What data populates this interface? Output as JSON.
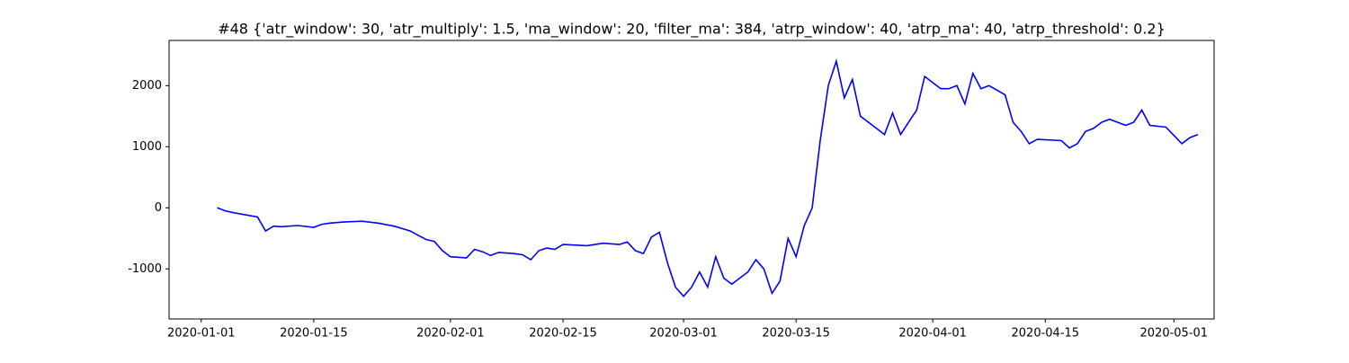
{
  "chart_data": {
    "type": "line",
    "title": "#48 {'atr_window': 30, 'atr_multiply': 1.5, 'ma_window': 20, 'filter_ma': 384, 'atrp_window': 40, 'atrp_ma': 40, 'atrp_threshold': 0.2}",
    "x": [
      "2020-01-03",
      "2020-01-04",
      "2020-01-05",
      "2020-01-08",
      "2020-01-09",
      "2020-01-10",
      "2020-01-11",
      "2020-01-13",
      "2020-01-15",
      "2020-01-16",
      "2020-01-17",
      "2020-01-19",
      "2020-01-21",
      "2020-01-23",
      "2020-01-25",
      "2020-01-27",
      "2020-01-28",
      "2020-01-29",
      "2020-01-30",
      "2020-01-31",
      "2020-02-01",
      "2020-02-03",
      "2020-02-04",
      "2020-02-05",
      "2020-02-06",
      "2020-02-07",
      "2020-02-09",
      "2020-02-10",
      "2020-02-11",
      "2020-02-12",
      "2020-02-13",
      "2020-02-14",
      "2020-02-15",
      "2020-02-18",
      "2020-02-20",
      "2020-02-22",
      "2020-02-23",
      "2020-02-24",
      "2020-02-25",
      "2020-02-26",
      "2020-02-27",
      "2020-02-28",
      "2020-02-29",
      "2020-03-01",
      "2020-03-02",
      "2020-03-03",
      "2020-03-04",
      "2020-03-05",
      "2020-03-06",
      "2020-03-07",
      "2020-03-09",
      "2020-03-10",
      "2020-03-11",
      "2020-03-12",
      "2020-03-13",
      "2020-03-14",
      "2020-03-15",
      "2020-03-16",
      "2020-03-17",
      "2020-03-18",
      "2020-03-19",
      "2020-03-20",
      "2020-03-21",
      "2020-03-22",
      "2020-03-23",
      "2020-03-25",
      "2020-03-26",
      "2020-03-27",
      "2020-03-28",
      "2020-03-29",
      "2020-03-30",
      "2020-03-31",
      "2020-04-02",
      "2020-04-03",
      "2020-04-04",
      "2020-04-05",
      "2020-04-06",
      "2020-04-07",
      "2020-04-08",
      "2020-04-10",
      "2020-04-11",
      "2020-04-12",
      "2020-04-13",
      "2020-04-14",
      "2020-04-17",
      "2020-04-18",
      "2020-04-19",
      "2020-04-20",
      "2020-04-21",
      "2020-04-22",
      "2020-04-23",
      "2020-04-25",
      "2020-04-26",
      "2020-04-27",
      "2020-04-28",
      "2020-04-30",
      "2020-05-02",
      "2020-05-03",
      "2020-05-04"
    ],
    "series": [
      {
        "color": "#0000ff",
        "values": [
          0,
          -50,
          -80,
          -150,
          -380,
          -300,
          -310,
          -290,
          -320,
          -270,
          -250,
          -230,
          -220,
          -250,
          -300,
          -380,
          -450,
          -520,
          -550,
          -700,
          -800,
          -820,
          -680,
          -720,
          -780,
          -730,
          -750,
          -770,
          -850,
          -700,
          -660,
          -680,
          -600,
          -620,
          -580,
          -600,
          -560,
          -700,
          -750,
          -480,
          -400,
          -900,
          -1300,
          -1450,
          -1300,
          -1050,
          -1300,
          -800,
          -1150,
          -1250,
          -1050,
          -850,
          -1000,
          -1400,
          -1200,
          -500,
          -800,
          -300,
          0,
          1100,
          2000,
          2400,
          1800,
          2100,
          1500,
          1300,
          1200,
          1550,
          1200,
          1400,
          1600,
          2150,
          1950,
          1950,
          2000,
          1700,
          2200,
          1950,
          2000,
          1850,
          1400,
          1250,
          1050,
          1120,
          1100,
          980,
          1050,
          1250,
          1300,
          1400,
          1450,
          1350,
          1400,
          1600,
          1350,
          1320,
          1050,
          1150,
          1200
        ]
      }
    ],
    "xlim": [
      "2019-12-28",
      "2020-05-06"
    ],
    "xticks": [
      "2020-01-01",
      "2020-01-15",
      "2020-02-01",
      "2020-02-15",
      "2020-03-01",
      "2020-03-15",
      "2020-04-01",
      "2020-04-15",
      "2020-05-01"
    ],
    "ylim": [
      -1820,
      2740
    ],
    "yticks": [
      -1000,
      0,
      1000,
      2000
    ]
  }
}
